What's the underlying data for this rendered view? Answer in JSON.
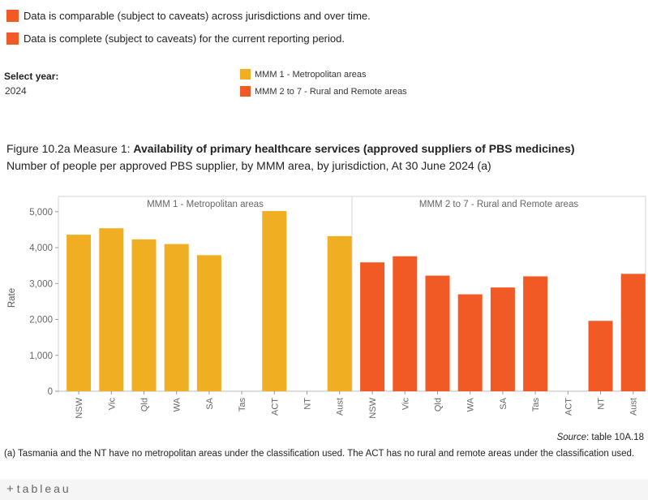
{
  "legend": {
    "comparable": "Data is comparable (subject to caveats) across jurisdictions and over time.",
    "complete": "Data is complete (subject to caveats) for the current reporting period."
  },
  "filter": {
    "label": "Select year:",
    "value": "2024"
  },
  "colors": {
    "metro": "#f0ae22",
    "rural": "#f15a24",
    "indicator": "#f15a24"
  },
  "title": {
    "prefix": "Figure 10.2a Measure 1: ",
    "bold": "Availability of primary healthcare services (approved suppliers of PBS medicines)",
    "subtitle": "Number of people per approved PBS supplier, by MMM area, by jurisdiction, At 30 June 2024 (a)"
  },
  "source": {
    "label": "Source",
    "text": ": table 10A.18"
  },
  "footnote": "(a) Tasmania and the NT have no metropolitan areas under the classification used. The ACT has no rural and remote areas under the classification used.",
  "branding": {
    "logo_plus": "+",
    "logo_text": "tableau"
  },
  "chart_data": {
    "type": "bar",
    "ylabel": "Rate",
    "ylim": [
      0,
      5200
    ],
    "yticks": [
      0,
      1000,
      2000,
      3000,
      4000,
      5000
    ],
    "ytick_labels": [
      "0",
      "1,000",
      "2,000",
      "3,000",
      "4,000",
      "5,000"
    ],
    "categories": [
      "NSW",
      "Vic",
      "Qld",
      "WA",
      "SA",
      "Tas",
      "ACT",
      "NT",
      "Aust"
    ],
    "legend": [
      "MMM 1 - Metropolitan areas",
      "MMM 2 to 7 - Rural and Remote areas"
    ],
    "series": [
      {
        "name": "MMM 1 - Metropolitan areas",
        "color": "#f0ae22",
        "values": [
          4360,
          4540,
          4230,
          4100,
          3790,
          null,
          5020,
          null,
          4320
        ]
      },
      {
        "name": "MMM 2 to 7 - Rural and Remote areas",
        "color": "#f15a24",
        "values": [
          3590,
          3760,
          3220,
          2700,
          2890,
          3200,
          null,
          1960,
          3270
        ]
      }
    ],
    "grid": false
  }
}
